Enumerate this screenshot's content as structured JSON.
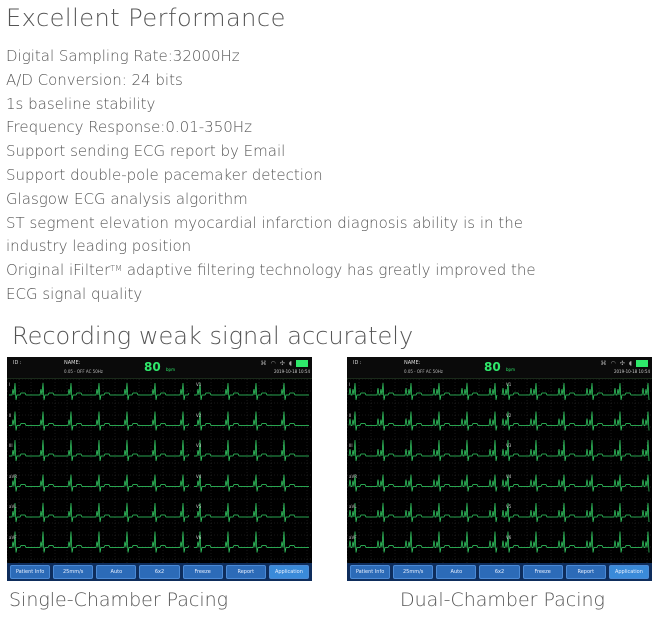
{
  "title": "Excellent Performance",
  "features": [
    "Digital Sampling Rate:32000Hz",
    "A/D Conversion: 24 bits",
    "1s baseline stability",
    "Frequency Response:0.01-350Hz",
    "Support sending ECG report by Email",
    "Support double-pole pacemaker detection",
    "Glasgow ECG analysis algorithm",
    "ST segment elevation myocardial infarction diagnosis ability is in the",
    "industry leading position"
  ],
  "ifilter": {
    "prefix": "Original iFilter",
    "tm": "TM",
    "suffix": " adaptive filtering technology has greatly improved the",
    "line2": "ECG signal quality"
  },
  "section_title": "Recording weak signal accurately",
  "screens": [
    {
      "caption": "Single-Chamber Pacing",
      "id_label": "ID :",
      "name_label": "NAME:",
      "filter": "0.05 - OFF  AC 50Hz",
      "heart_rate": "80",
      "hr_unit": "bpm",
      "date": "2019-10-18  10:54",
      "leads_left": [
        "I",
        "II",
        "III",
        "aVR",
        "aVL",
        "aVF"
      ],
      "leads_right": [
        "V1",
        "V2",
        "V3",
        "V4",
        "V5",
        "V6"
      ],
      "buttons": [
        "Patient Info",
        "25mm/s",
        "Auto",
        "6x2",
        "Freeze",
        "Report",
        "Application"
      ]
    },
    {
      "caption": "Dual-Chamber Pacing",
      "id_label": "ID :",
      "name_label": "NAME:",
      "filter": "0.05 - OFF  AC 50Hz",
      "heart_rate": "80",
      "hr_unit": "bpm",
      "date": "2019-10-18  10:54",
      "leads_left": [
        "I",
        "II",
        "III",
        "aVR",
        "aVL",
        "aVF"
      ],
      "leads_right": [
        "V1",
        "V2",
        "V3",
        "V4",
        "V5",
        "V6"
      ],
      "buttons": [
        "Patient Info",
        "25mm/s",
        "Auto",
        "6x2",
        "Freeze",
        "Report",
        "Application"
      ]
    }
  ],
  "colors": {
    "trace": "#36d96a",
    "grid": "#3d3d3d",
    "button": "#2c6bb8",
    "bar": "#0e2d5c"
  },
  "icons": [
    "pacing-icon",
    "wifi-icon",
    "fan-icon",
    "speaker-icon",
    "battery-icon"
  ]
}
